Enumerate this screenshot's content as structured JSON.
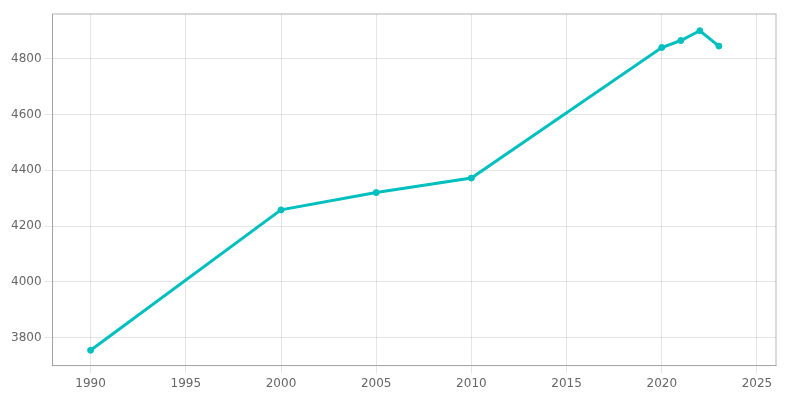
{
  "chart_data": {
    "type": "line",
    "x": [
      1990,
      2000,
      2005,
      2010,
      2020,
      2021,
      2022,
      2023
    ],
    "values": [
      3755,
      4258,
      4320,
      4372,
      4840,
      4865,
      4900,
      4845
    ],
    "color": "#00BFBF",
    "marker": "circle",
    "xlim": [
      1988,
      2026
    ],
    "ylim": [
      3700,
      4960
    ],
    "xticks": [
      1990,
      1995,
      2000,
      2005,
      2010,
      2015,
      2020,
      2025
    ],
    "yticks": [
      3800,
      4000,
      4200,
      4400,
      4600,
      4800
    ],
    "grid": true
  }
}
